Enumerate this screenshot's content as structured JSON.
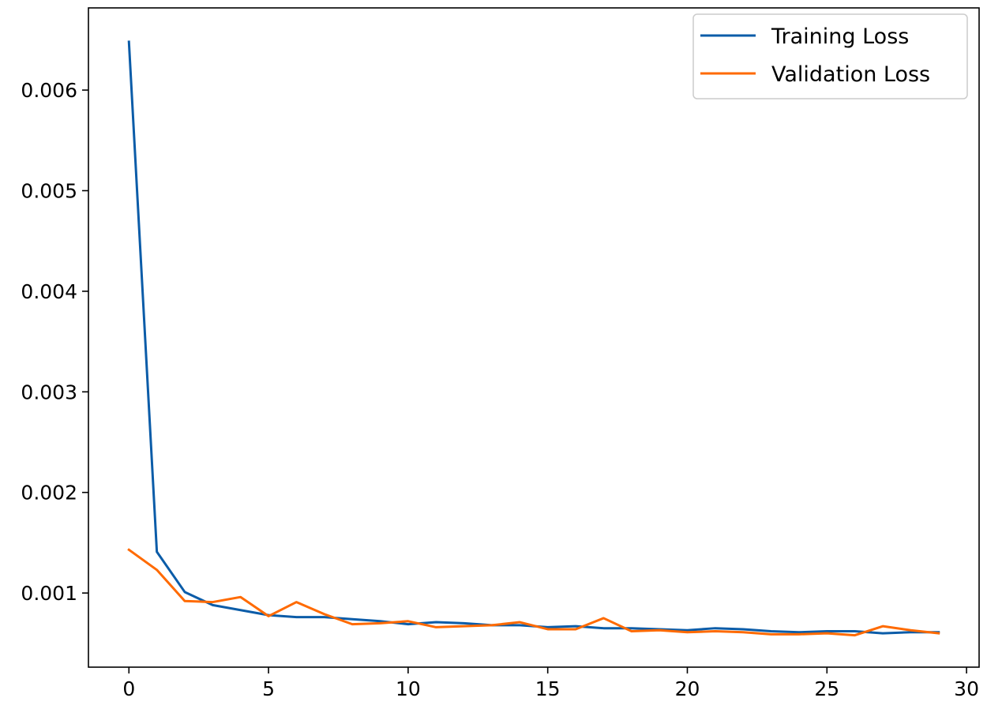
{
  "chart_data": {
    "type": "line",
    "x": [
      0,
      1,
      2,
      3,
      4,
      5,
      6,
      7,
      8,
      9,
      10,
      11,
      12,
      13,
      14,
      15,
      16,
      17,
      18,
      19,
      20,
      21,
      22,
      23,
      24,
      25,
      26,
      27,
      28,
      29
    ],
    "series": [
      {
        "name": "Training Loss",
        "color": "#0b5ca8",
        "values": [
          0.00648,
          0.00141,
          0.00101,
          0.00088,
          0.00083,
          0.00078,
          0.00076,
          0.00076,
          0.00074,
          0.00072,
          0.00069,
          0.00071,
          0.0007,
          0.00068,
          0.00068,
          0.00066,
          0.00067,
          0.00065,
          0.00065,
          0.00064,
          0.00063,
          0.00065,
          0.00064,
          0.00062,
          0.00061,
          0.00062,
          0.00062,
          0.0006,
          0.00061,
          0.00061
        ]
      },
      {
        "name": "Validation Loss",
        "color": "#ff6a00",
        "values": [
          0.00143,
          0.00123,
          0.00092,
          0.00091,
          0.00096,
          0.00077,
          0.00091,
          0.00079,
          0.00069,
          0.0007,
          0.00072,
          0.00066,
          0.00067,
          0.00068,
          0.00071,
          0.00064,
          0.00064,
          0.00075,
          0.00062,
          0.00063,
          0.00061,
          0.00062,
          0.00061,
          0.00059,
          0.00059,
          0.0006,
          0.00058,
          0.00067,
          0.00063,
          0.0006
        ]
      }
    ],
    "xlim": [
      -1.45,
      30.45
    ],
    "ylim": [
      0.000263,
      0.006817
    ],
    "x_ticks": [
      0,
      5,
      10,
      15,
      20,
      25,
      30
    ],
    "x_tick_labels": [
      "0",
      "5",
      "10",
      "15",
      "20",
      "25",
      "30"
    ],
    "y_ticks": [
      0.001,
      0.002,
      0.003,
      0.004,
      0.005,
      0.006
    ],
    "y_tick_labels": [
      "0.001",
      "0.002",
      "0.003",
      "0.004",
      "0.005",
      "0.006"
    ],
    "grid": false,
    "legend_position": "top-right",
    "title": "",
    "xlabel": "",
    "ylabel": ""
  }
}
